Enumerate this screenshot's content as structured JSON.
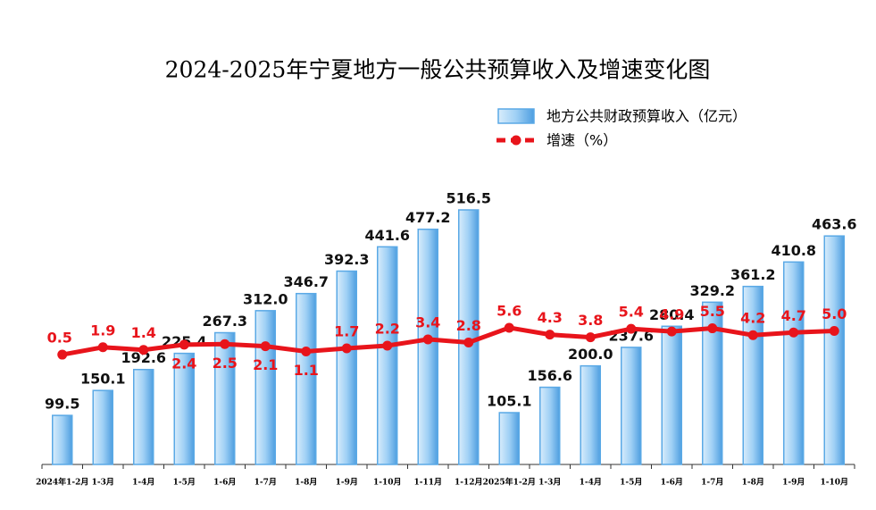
{
  "chart_data": {
    "type": "bar-line",
    "title": "2024-2025年宁夏地方一般公共预算收入及增速变化图",
    "categories": [
      "2024年1-2月",
      "1-3月",
      "1-4月",
      "1-5月",
      "1-6月",
      "1-7月",
      "1-8月",
      "1-9月",
      "1-10月",
      "1-11月",
      "1-12月",
      "2025年1-2月",
      "1-3月",
      "1-4月",
      "1-5月",
      "1-6月",
      "1-7月",
      "1-8月",
      "1-9月",
      "1-10月"
    ],
    "series": [
      {
        "name": "地方公共财政预算收入（亿元）",
        "type": "bar",
        "color": "#5aa9e6",
        "values": [
          99.5,
          150.1,
          192.6,
          225.4,
          267.3,
          312.0,
          346.7,
          392.3,
          441.6,
          477.2,
          516.5,
          105.1,
          156.6,
          200.0,
          237.6,
          280.4,
          329.2,
          361.2,
          410.8,
          463.6
        ],
        "value_labels": [
          "99.5",
          "150.1",
          "192.6",
          "225.4",
          "267.3",
          "312.0",
          "346.7",
          "392.3",
          "441.6",
          "477.2",
          "516.5",
          "105.1",
          "156.6",
          "200.0",
          "237.6",
          "280.4",
          "329.2",
          "361.2",
          "410.8",
          "463.6"
        ]
      },
      {
        "name": "增速（%）",
        "type": "line",
        "color": "#e8141b",
        "values": [
          0.5,
          1.9,
          1.4,
          2.4,
          2.5,
          2.1,
          1.1,
          1.7,
          2.2,
          3.4,
          2.8,
          5.6,
          4.3,
          3.8,
          5.4,
          4.9,
          5.5,
          4.2,
          4.7,
          5.0
        ],
        "value_labels": [
          "0.5",
          "1.9",
          "1.4",
          "2.4",
          "2.5",
          "2.1",
          "1.1",
          "1.7",
          "2.2",
          "3.4",
          "2.8",
          "5.6",
          "4.3",
          "3.8",
          "5.4",
          "4.9",
          "5.5",
          "4.2",
          "4.7",
          "5.0"
        ]
      }
    ]
  }
}
